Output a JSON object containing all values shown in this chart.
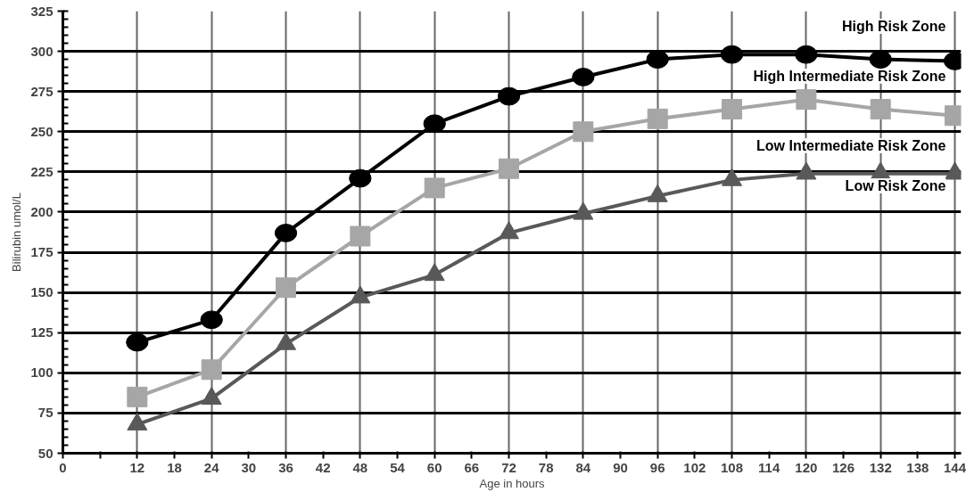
{
  "chart_data": {
    "type": "line",
    "xlabel": "Age in hours",
    "ylabel": "Bilirubin umol/L",
    "x": [
      12,
      24,
      36,
      48,
      60,
      72,
      84,
      96,
      108,
      120,
      132,
      144
    ],
    "series": [
      {
        "color": "#000000",
        "marker": "circle",
        "values": [
          119,
          133,
          187,
          221,
          255,
          272,
          284,
          295,
          298,
          298,
          295,
          294
        ]
      },
      {
        "color": "#a6a6a6",
        "marker": "square",
        "values": [
          85,
          102,
          153,
          185,
          215,
          227,
          250,
          258,
          264,
          270,
          264,
          260
        ]
      },
      {
        "color": "#595959",
        "marker": "triangle",
        "values": [
          68,
          84,
          118,
          147,
          161,
          187,
          199,
          210,
          220,
          224,
          224,
          224
        ]
      }
    ],
    "xlim": [
      0,
      145
    ],
    "ylim": [
      50,
      325
    ],
    "xticks": [
      0,
      {
        "value": 6,
        "label": null
      },
      12,
      18,
      24,
      30,
      36,
      42,
      48,
      54,
      60,
      66,
      72,
      78,
      84,
      90,
      96,
      102,
      108,
      114,
      120,
      126,
      132,
      138,
      144
    ],
    "yticks": [
      50,
      75,
      100,
      125,
      150,
      175,
      200,
      225,
      250,
      275,
      300,
      325
    ],
    "grid": true,
    "line_style": "solid",
    "annotations": [
      "High Risk Zone",
      "High Intermediate Risk Zone",
      "Low Intermediate Risk Zone",
      "Low Risk Zone"
    ]
  }
}
